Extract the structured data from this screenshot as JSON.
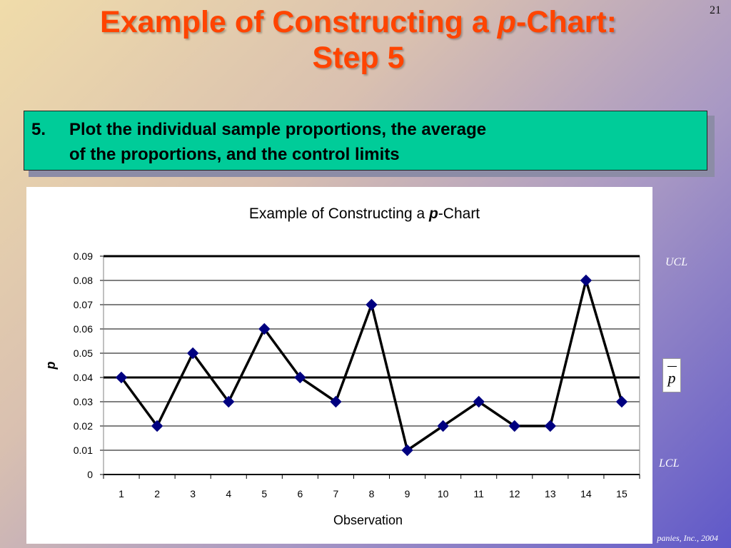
{
  "slide": {
    "number": "21",
    "title_line1_pre": "Example of Constructing a ",
    "title_line1_italic": "p",
    "title_line1_post": "-Chart:",
    "title_line2": "Step 5",
    "step_number": "5.",
    "step_line1": "Plot the individual sample proportions, the average",
    "step_line2": "of the proportions, and the control limits",
    "ucl_label": "UCL",
    "pbar_label": "p",
    "lcl_label": "LCL",
    "footer": "panies, Inc., 2004"
  },
  "chart_data": {
    "type": "line",
    "title_pre": "Example of Constructing a ",
    "title_italic": "p",
    "title_post": "-Chart",
    "xlabel": "Observation",
    "ylabel": "p",
    "categories": [
      "1",
      "2",
      "3",
      "4",
      "5",
      "6",
      "7",
      "8",
      "9",
      "10",
      "11",
      "12",
      "13",
      "14",
      "15"
    ],
    "series": [
      {
        "values": [
          0.04,
          0.02,
          0.05,
          0.03,
          0.06,
          0.04,
          0.03,
          0.07,
          0.01,
          0.02,
          0.03,
          0.02,
          0.02,
          0.08,
          0.03
        ]
      }
    ],
    "yticks": [
      "0",
      "0.01",
      "0.02",
      "0.03",
      "0.04",
      "0.05",
      "0.06",
      "0.07",
      "0.08",
      "0.09"
    ],
    "ylim": [
      0,
      0.09
    ],
    "reference_lines": {
      "ucl": 0.09,
      "center": 0.04,
      "lcl": 0
    },
    "grid": true,
    "marker": "diamond",
    "marker_color": "#000080",
    "line_color": "#000000"
  }
}
